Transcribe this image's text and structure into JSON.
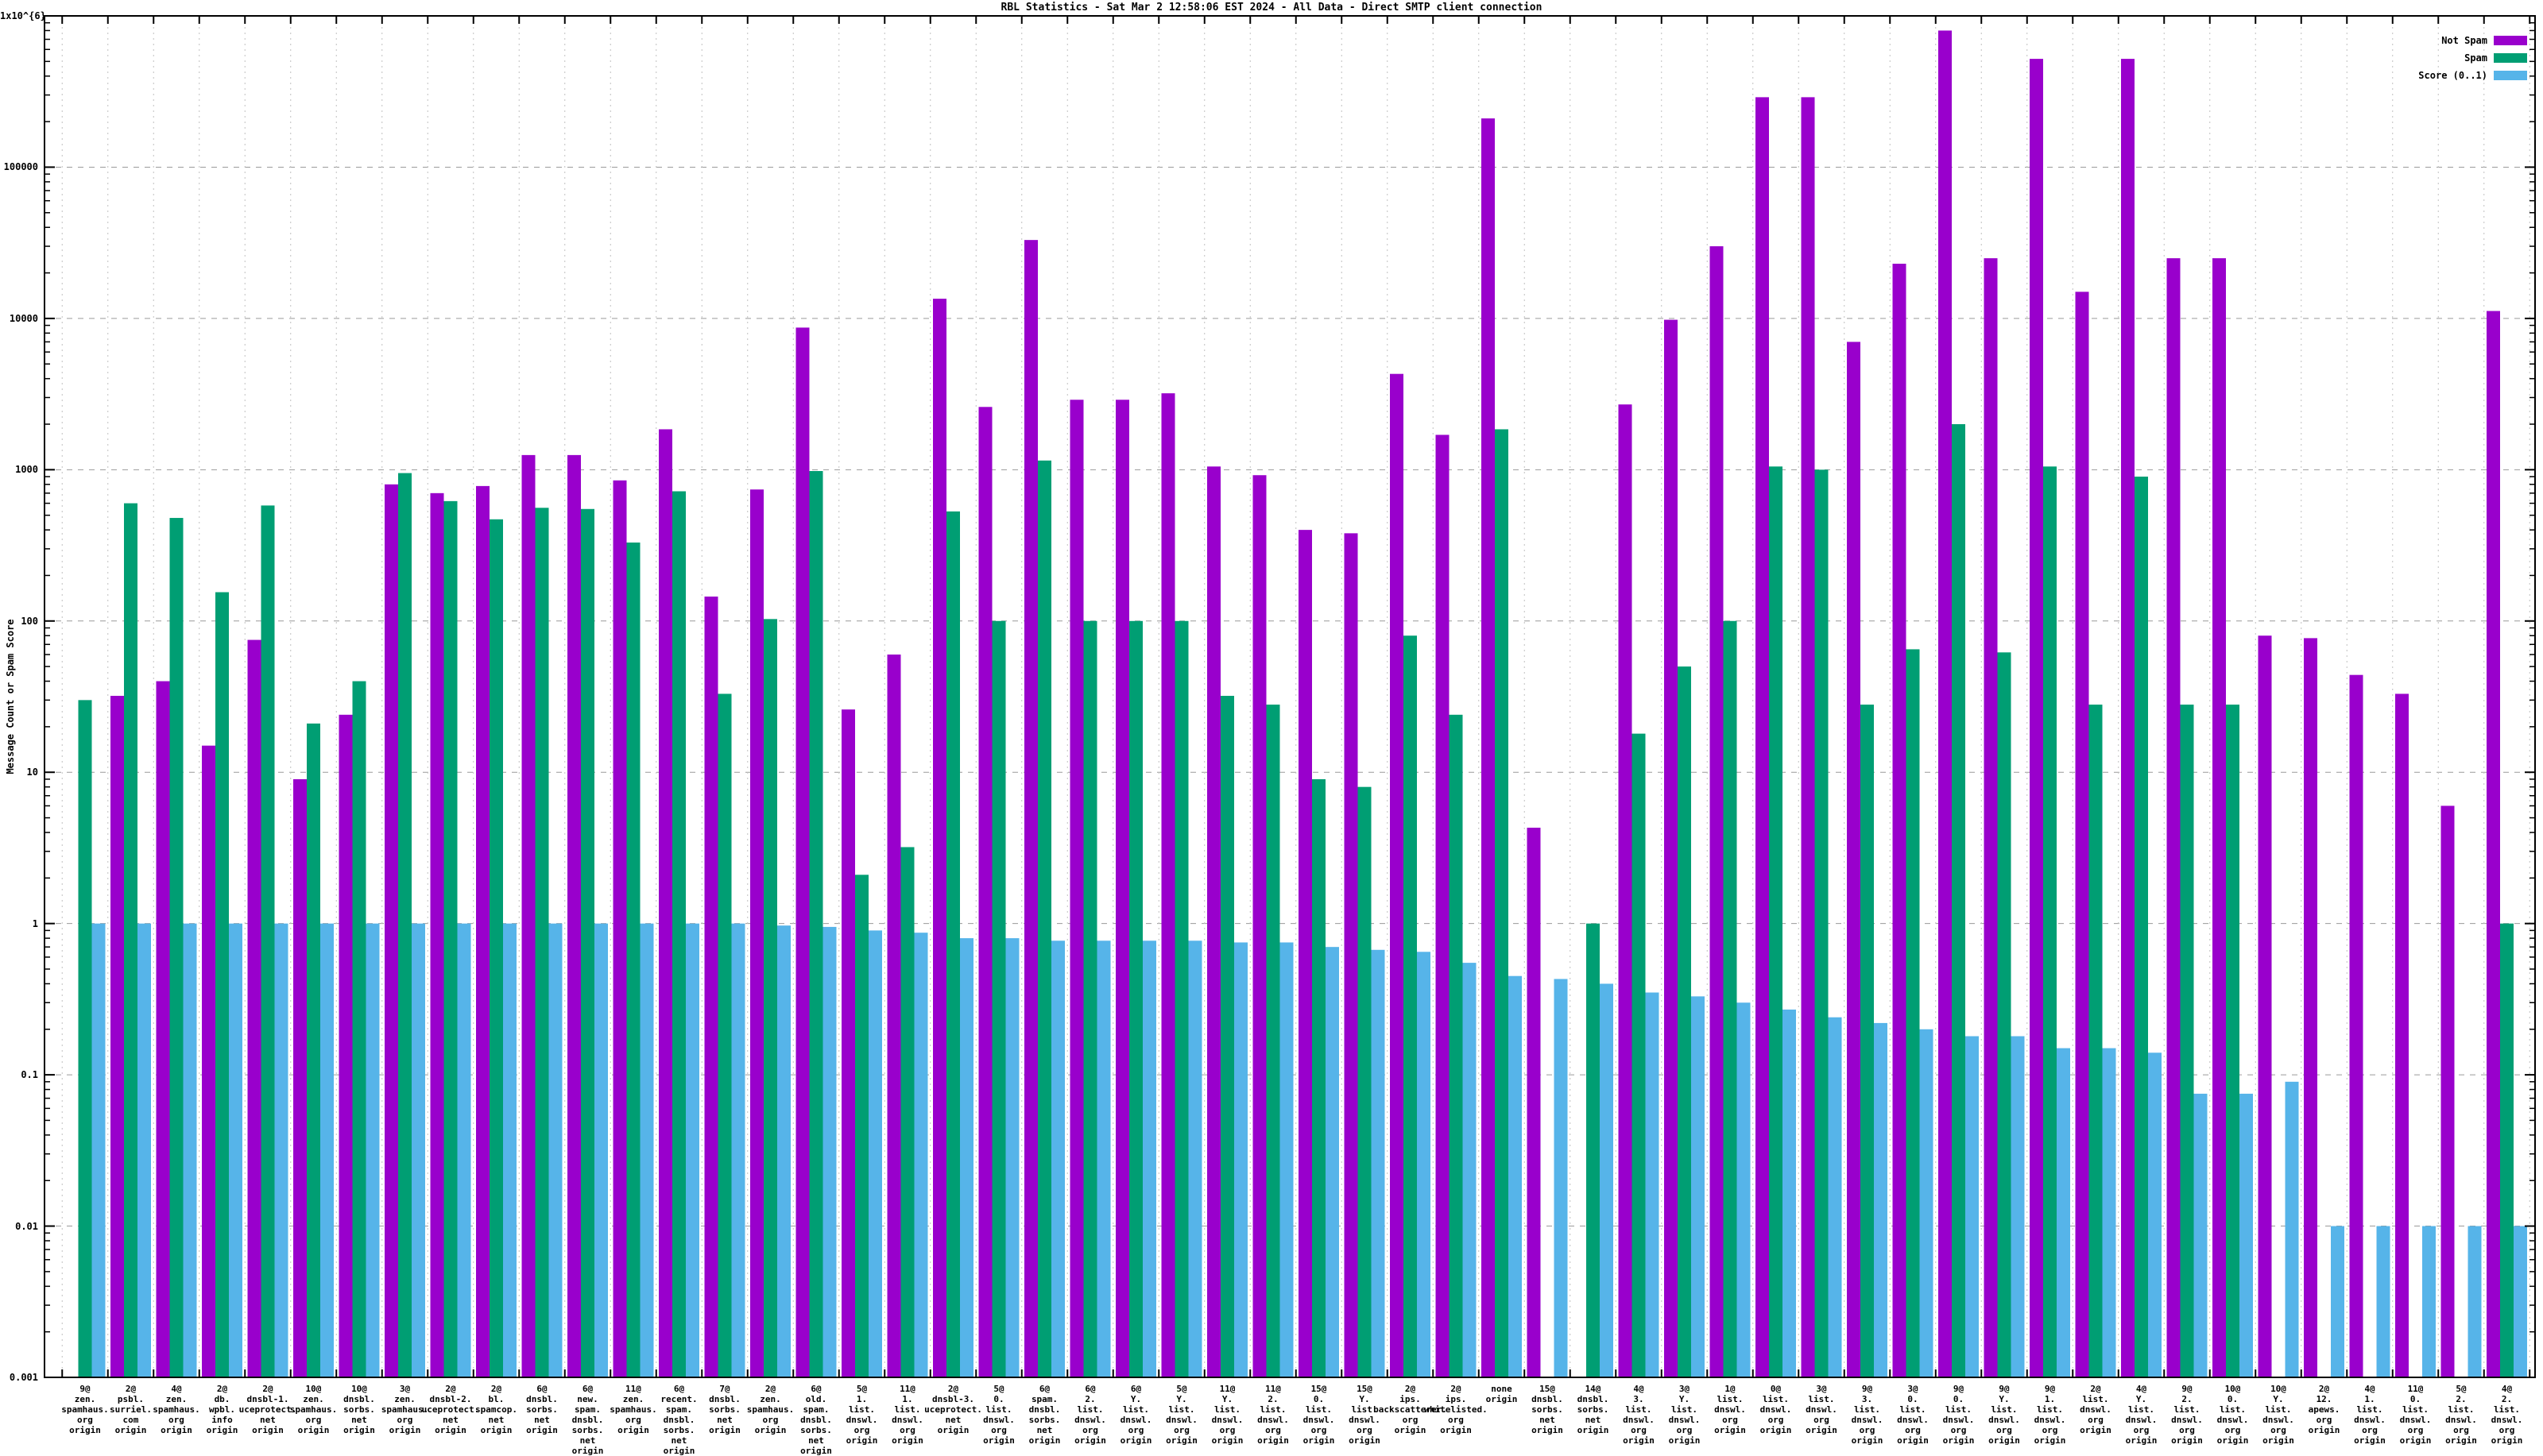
{
  "title": "RBL Statistics - Sat Mar  2 12:58:06 EST 2024 - All Data - Direct SMTP client connection",
  "y_axis_title": "Message Count or Spam Score",
  "chart_data": {
    "type": "bar",
    "title": "RBL Statistics - Sat Mar  2 12:58:06 EST 2024 - All Data - Direct SMTP client connection",
    "ylabel": "Message Count or Spam Score",
    "xlabel": "",
    "y_scale": "log",
    "ylim": [
      0.001,
      1000000
    ],
    "ytick_labels": [
      "1x10^{6}",
      "100000",
      "10000",
      "1000",
      "100",
      "10",
      "1",
      "0.1",
      "0.01",
      "0.001"
    ],
    "ytick_values": [
      1000000,
      100000,
      10000,
      1000,
      100,
      10,
      1,
      0.1,
      0.01,
      0.001
    ],
    "grid": true,
    "legend_position": "top-right",
    "categories": [
      [
        "9@",
        "zen.",
        "spamhaus.",
        "org",
        "origin"
      ],
      [
        "2@",
        "psbl.",
        "surriel.",
        "com",
        "origin"
      ],
      [
        "4@",
        "zen.",
        "spamhaus.",
        "org",
        "origin"
      ],
      [
        "2@",
        "db.",
        "wpbl.",
        "info",
        "origin"
      ],
      [
        "2@",
        "dnsbl-1.",
        "uceprotect.",
        "net",
        "origin"
      ],
      [
        "10@",
        "zen.",
        "spamhaus.",
        "org",
        "origin"
      ],
      [
        "10@",
        "dnsbl.",
        "sorbs.",
        "net",
        "origin"
      ],
      [
        "3@",
        "zen.",
        "spamhaus.",
        "org",
        "origin"
      ],
      [
        "2@",
        "dnsbl-2.",
        "uceprotect.",
        "net",
        "origin"
      ],
      [
        "2@",
        "bl.",
        "spamcop.",
        "net",
        "origin"
      ],
      [
        "6@",
        "dnsbl.",
        "sorbs.",
        "net",
        "origin"
      ],
      [
        "6@",
        "new.",
        "spam.",
        "dnsbl.",
        "sorbs.",
        "net",
        "origin"
      ],
      [
        "11@",
        "zen.",
        "spamhaus.",
        "org",
        "origin"
      ],
      [
        "6@",
        "recent.",
        "spam.",
        "dnsbl.",
        "sorbs.",
        "net",
        "origin"
      ],
      [
        "7@",
        "dnsbl.",
        "sorbs.",
        "net",
        "origin"
      ],
      [
        "2@",
        "zen.",
        "spamhaus.",
        "org",
        "origin"
      ],
      [
        "6@",
        "old.",
        "spam.",
        "dnsbl.",
        "sorbs.",
        "net",
        "origin"
      ],
      [
        "5@",
        "1.",
        "list.",
        "dnswl.",
        "org",
        "origin"
      ],
      [
        "11@",
        "1.",
        "list.",
        "dnswl.",
        "org",
        "origin"
      ],
      [
        "2@",
        "dnsbl-3.",
        "uceprotect.",
        "net",
        "origin"
      ],
      [
        "5@",
        "0.",
        "list.",
        "dnswl.",
        "org",
        "origin"
      ],
      [
        "6@",
        "spam.",
        "dnsbl.",
        "sorbs.",
        "net",
        "origin"
      ],
      [
        "6@",
        "2.",
        "list.",
        "dnswl.",
        "org",
        "origin"
      ],
      [
        "6@",
        "Y.",
        "list.",
        "dnswl.",
        "org",
        "origin"
      ],
      [
        "5@",
        "Y.",
        "list.",
        "dnswl.",
        "org",
        "origin"
      ],
      [
        "11@",
        "Y.",
        "list.",
        "dnswl.",
        "org",
        "origin"
      ],
      [
        "11@",
        "2.",
        "list.",
        "dnswl.",
        "org",
        "origin"
      ],
      [
        "15@",
        "0.",
        "list.",
        "dnswl.",
        "org",
        "origin"
      ],
      [
        "15@",
        "Y.",
        "list.",
        "dnswl.",
        "org",
        "origin"
      ],
      [
        "2@",
        "ips.",
        "backscatterer.",
        "org",
        "origin"
      ],
      [
        "2@",
        "ips.",
        "whitelisted.",
        "org",
        "origin"
      ],
      [
        "none",
        "origin"
      ],
      [
        "15@",
        "dnsbl.",
        "sorbs.",
        "net",
        "origin"
      ],
      [
        "14@",
        "dnsbl.",
        "sorbs.",
        "net",
        "origin"
      ],
      [
        "4@",
        "3.",
        "list.",
        "dnswl.",
        "org",
        "origin"
      ],
      [
        "3@",
        "Y.",
        "list.",
        "dnswl.",
        "org",
        "origin"
      ],
      [
        "1@",
        "list.",
        "dnswl.",
        "org",
        "origin"
      ],
      [
        "0@",
        "list.",
        "dnswl.",
        "org",
        "origin"
      ],
      [
        "3@",
        "list.",
        "dnswl.",
        "org",
        "origin"
      ],
      [
        "9@",
        "3.",
        "list.",
        "dnswl.",
        "org",
        "origin"
      ],
      [
        "3@",
        "0.",
        "list.",
        "dnswl.",
        "org",
        "origin"
      ],
      [
        "9@",
        "0.",
        "list.",
        "dnswl.",
        "org",
        "origin"
      ],
      [
        "9@",
        "Y.",
        "list.",
        "dnswl.",
        "org",
        "origin"
      ],
      [
        "9@",
        "1.",
        "list.",
        "dnswl.",
        "org",
        "origin"
      ],
      [
        "2@",
        "list.",
        "dnswl.",
        "org",
        "origin"
      ],
      [
        "4@",
        "Y.",
        "list.",
        "dnswl.",
        "org",
        "origin"
      ],
      [
        "9@",
        "2.",
        "list.",
        "dnswl.",
        "org",
        "origin"
      ],
      [
        "10@",
        "0.",
        "list.",
        "dnswl.",
        "org",
        "origin"
      ],
      [
        "10@",
        "Y.",
        "list.",
        "dnswl.",
        "org",
        "origin"
      ],
      [
        "2@",
        "12.",
        "apews.",
        "org",
        "origin"
      ],
      [
        "4@",
        "1.",
        "list.",
        "dnswl.",
        "org",
        "origin"
      ],
      [
        "11@",
        "0.",
        "list.",
        "dnswl.",
        "org",
        "origin"
      ],
      [
        "5@",
        "2.",
        "list.",
        "dnswl.",
        "org",
        "origin"
      ],
      [
        "4@",
        "2.",
        "list.",
        "dnswl.",
        "org",
        "origin"
      ]
    ],
    "series": [
      {
        "name": "Not Spam",
        "color": "#9900cc",
        "values": [
          0,
          32,
          40,
          15,
          75,
          9,
          24,
          800,
          700,
          780,
          1250,
          1250,
          850,
          1850,
          145,
          740,
          8700,
          26,
          60,
          13500,
          2600,
          33000,
          2900,
          2900,
          3200,
          1050,
          920,
          400,
          380,
          4300,
          1700,
          210000,
          4.3,
          0,
          2700,
          9800,
          30000,
          290000,
          290000,
          7000,
          23000,
          800000,
          25000,
          520000,
          15000,
          520000,
          25000,
          25000,
          80,
          77,
          44,
          33,
          6,
          11200
        ]
      },
      {
        "name": "Spam",
        "color": "#009e73",
        "values": [
          30,
          600,
          480,
          155,
          580,
          21,
          40,
          950,
          620,
          470,
          560,
          550,
          330,
          720,
          33,
          103,
          980,
          2.1,
          3.2,
          530,
          100,
          1150,
          100,
          100,
          100,
          32,
          28,
          9,
          8,
          80,
          24,
          1850,
          0,
          1.0,
          18,
          50,
          100,
          1050,
          1000,
          28,
          65,
          2000,
          62,
          1050,
          28,
          900,
          28,
          28,
          0,
          0,
          0,
          0,
          0,
          1.0
        ]
      },
      {
        "name": "Score (0..1)",
        "color": "#56b4e9",
        "values": [
          1,
          1,
          1,
          1,
          1,
          1,
          1,
          1,
          1,
          1,
          1,
          1,
          1,
          1,
          1,
          0.97,
          0.95,
          0.9,
          0.87,
          0.8,
          0.8,
          0.77,
          0.77,
          0.77,
          0.77,
          0.75,
          0.75,
          0.7,
          0.67,
          0.65,
          0.55,
          0.45,
          0.43,
          0.4,
          0.35,
          0.33,
          0.3,
          0.27,
          0.24,
          0.22,
          0.2,
          0.18,
          0.18,
          0.15,
          0.15,
          0.14,
          0.075,
          0.075,
          0.09,
          0.01,
          0.01,
          0.01,
          0.01,
          0.01
        ]
      }
    ]
  }
}
